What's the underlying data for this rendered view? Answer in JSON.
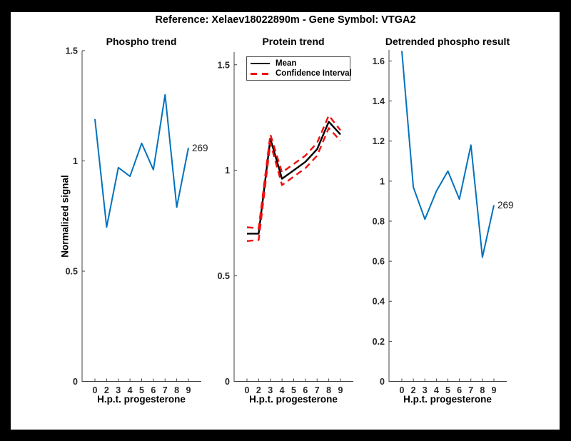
{
  "figure_title": "Reference:  Xelaev18022890m - Gene Symbol:  VTGA2",
  "colors": {
    "blue": "#0072BD",
    "red": "#F10E0E",
    "black": "#000000",
    "axis": "#404040"
  },
  "chart_data": [
    {
      "type": "line",
      "title": "Phospho trend",
      "xlabel": "H.p.t. progesterone",
      "ylabel": "Normalized signal",
      "x_tick_labels": [
        "0",
        "2",
        "3",
        "4",
        "5",
        "6",
        "7",
        "8",
        "9"
      ],
      "y_ticks": [
        0,
        0.5,
        1,
        1.5
      ],
      "ylim": [
        0,
        1.5
      ],
      "grid": false,
      "end_label": "269",
      "series": [
        {
          "color": "blue",
          "style": "solid",
          "values": [
            1.19,
            0.7,
            0.97,
            0.93,
            1.08,
            0.96,
            1.3,
            0.79,
            1.06
          ]
        }
      ]
    },
    {
      "type": "line",
      "title": "Protein trend",
      "xlabel": "H.p.t. progesterone",
      "x_tick_labels": [
        "0",
        "2",
        "3",
        "4",
        "5",
        "6",
        "7",
        "8",
        "9"
      ],
      "y_ticks": [
        0,
        0.5,
        1,
        1.5
      ],
      "ylim": [
        0,
        1.56
      ],
      "grid": false,
      "legend_position": "top-left",
      "legend": [
        {
          "label": "Mean",
          "color": "black",
          "style": "solid"
        },
        {
          "label": "Confidence Interval",
          "color": "red",
          "style": "dashed"
        }
      ],
      "series": [
        {
          "name": "Mean",
          "color": "black",
          "style": "solid",
          "values": [
            0.7,
            0.7,
            1.15,
            0.96,
            1.0,
            1.04,
            1.1,
            1.23,
            1.17
          ]
        },
        {
          "name": "Confidence Interval upper",
          "color": "red",
          "style": "dashed",
          "values": [
            0.73,
            0.725,
            1.17,
            0.99,
            1.03,
            1.07,
            1.13,
            1.26,
            1.19
          ]
        },
        {
          "name": "Confidence Interval lower",
          "color": "red",
          "style": "dashed",
          "values": [
            0.665,
            0.67,
            1.13,
            0.93,
            0.97,
            1.01,
            1.07,
            1.2,
            1.14
          ]
        }
      ]
    },
    {
      "type": "line",
      "title": "Detrended phospho result",
      "xlabel": "H.p.t. progesterone",
      "x_tick_labels": [
        "0",
        "2",
        "3",
        "4",
        "5",
        "6",
        "7",
        "8",
        "9"
      ],
      "y_ticks": [
        0,
        0.2,
        0.4,
        0.6,
        0.8,
        1,
        1.2,
        1.4,
        1.6
      ],
      "ylim": [
        0,
        1.655
      ],
      "grid": false,
      "end_label": "269",
      "series": [
        {
          "color": "blue",
          "style": "solid",
          "values": [
            1.65,
            0.97,
            0.81,
            0.95,
            1.05,
            0.91,
            1.18,
            0.62,
            0.88
          ]
        }
      ]
    }
  ]
}
